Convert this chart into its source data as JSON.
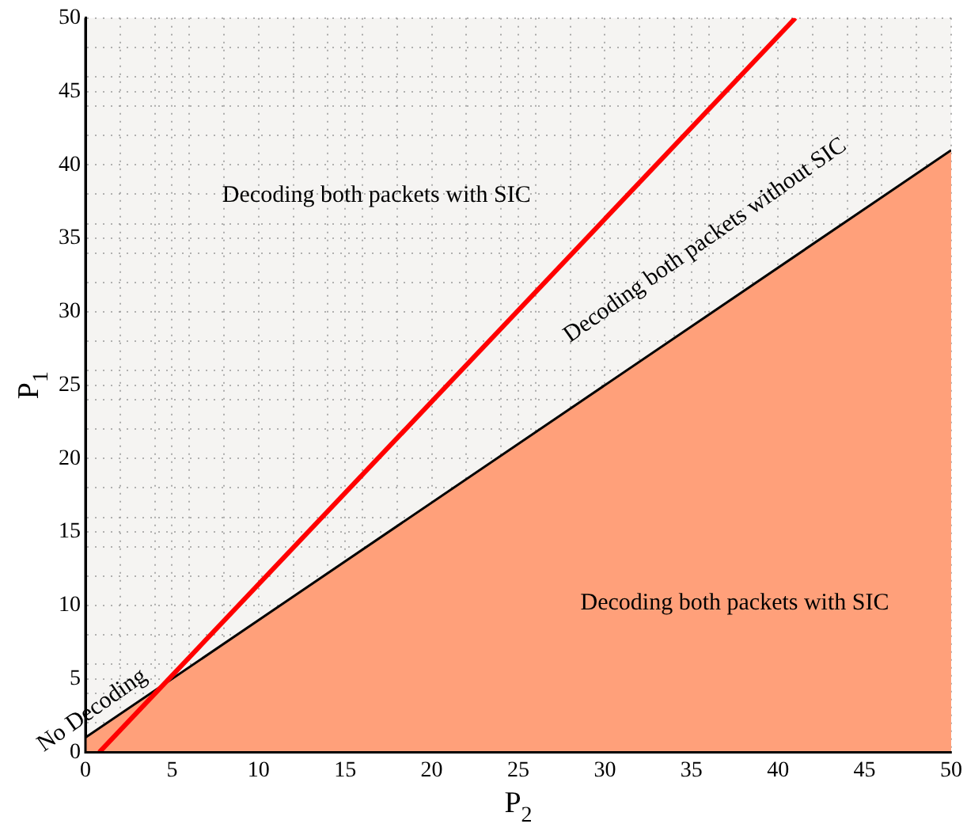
{
  "chart_data": {
    "type": "line",
    "xlabel": "P$_{2}$",
    "ylabel": "P$_{1}$",
    "xlim": [
      0,
      50
    ],
    "ylim": [
      0,
      50
    ],
    "xticks": [
      0,
      {
        "value": 2,
        "label": null
      },
      {
        "value": 4,
        "label": null
      },
      5,
      {
        "value": 6,
        "label": null
      },
      {
        "value": 8,
        "label": null
      },
      10,
      {
        "value": 12,
        "label": null
      },
      {
        "value": 14,
        "label": null
      },
      15,
      {
        "value": 16,
        "label": null
      },
      {
        "value": 18,
        "label": null
      },
      20,
      {
        "value": 22,
        "label": null
      },
      {
        "value": 24,
        "label": null
      },
      25,
      {
        "value": 26,
        "label": null
      },
      {
        "value": 28,
        "label": null
      },
      30,
      {
        "value": 32,
        "label": null
      },
      {
        "value": 34,
        "label": null
      },
      35,
      {
        "value": 36,
        "label": null
      },
      {
        "value": 38,
        "label": null
      },
      40,
      {
        "value": 42,
        "label": null
      },
      {
        "value": 44,
        "label": null
      },
      45,
      {
        "value": 46,
        "label": null
      },
      {
        "value": 48,
        "label": null
      },
      50
    ],
    "yticks": [
      0,
      {
        "value": 2,
        "label": null
      },
      {
        "value": 4,
        "label": null
      },
      5,
      {
        "value": 6,
        "label": null
      },
      {
        "value": 8,
        "label": null
      },
      10,
      {
        "value": 12,
        "label": null
      },
      {
        "value": 14,
        "label": null
      },
      15,
      {
        "value": 16,
        "label": null
      },
      {
        "value": 18,
        "label": null
      },
      20,
      {
        "value": 22,
        "label": null
      },
      {
        "value": 24,
        "label": null
      },
      25,
      {
        "value": 26,
        "label": null
      },
      {
        "value": 28,
        "label": null
      },
      30,
      {
        "value": 32,
        "label": null
      },
      {
        "value": 34,
        "label": null
      },
      35,
      {
        "value": 36,
        "label": null
      },
      {
        "value": 38,
        "label": null
      },
      40,
      {
        "value": 42,
        "label": null
      },
      {
        "value": 44,
        "label": null
      },
      45,
      {
        "value": 46,
        "label": null
      },
      {
        "value": 48,
        "label": null
      },
      50
    ],
    "grid": true,
    "legend": false,
    "marker": "none",
    "line_style": "solid",
    "series": [
      {
        "type": "area",
        "color": "#ffa07a",
        "x": [
          0,
          50
        ],
        "values": [
          1,
          41
        ]
      },
      {
        "type": "line",
        "color": "#ff0000",
        "x": [
          0.8,
          41
        ],
        "values": [
          0,
          50
        ]
      }
    ],
    "annotations": [
      "Decoding both packets with SIC",
      "Decoding both packets without SIC",
      "No Decoding",
      "Decoding both packets with SIC"
    ]
  }
}
